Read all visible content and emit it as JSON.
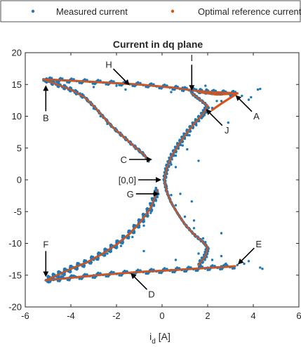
{
  "colors": {
    "measured": "#1f77b4",
    "reference": "#d95319",
    "axis": "#262626",
    "arrow": "#000000"
  },
  "chart_data": {
    "type": "scatter",
    "title": "Current in dq plane",
    "xlabel_main": "i",
    "xlabel_sub": "d",
    "xlabel_unit": " [A]",
    "ylabel": "",
    "xlim": [
      -6,
      6
    ],
    "ylim": [
      -20,
      20
    ],
    "xticks": [
      -6,
      -4,
      -2,
      0,
      2,
      4,
      6
    ],
    "yticks": [
      -20,
      -15,
      -10,
      -5,
      0,
      5,
      10,
      15,
      20
    ],
    "grid": false,
    "legend_position": "top",
    "series": [
      {
        "name": "Measured current",
        "style": "dots",
        "color_key": "measured",
        "points": [
          [
            -5.2,
            15.6
          ],
          [
            -4.8,
            15.2
          ],
          [
            -4.5,
            14.8
          ],
          [
            -4.2,
            14.6
          ],
          [
            -4.0,
            14.4
          ],
          [
            -3.8,
            14.1
          ],
          [
            -3.6,
            13.6
          ],
          [
            -3.4,
            13.0
          ],
          [
            -3.2,
            12.2
          ],
          [
            -3.0,
            11.2
          ],
          [
            -2.7,
            10.0
          ],
          [
            -2.4,
            8.8
          ],
          [
            -2.0,
            7.6
          ],
          [
            -1.6,
            6.4
          ],
          [
            -1.2,
            5.2
          ],
          [
            -0.9,
            4.2
          ],
          [
            -0.6,
            3.2
          ],
          [
            -3.0,
            14.6
          ],
          [
            -2.0,
            14.8
          ],
          [
            -1.2,
            15.0
          ],
          [
            -0.5,
            15.1
          ],
          [
            0.2,
            14.8
          ],
          [
            0.9,
            14.5
          ],
          [
            1.5,
            14.2
          ],
          [
            2.2,
            14.0
          ],
          [
            2.8,
            13.8
          ],
          [
            3.2,
            13.6
          ],
          [
            3.5,
            13.2
          ],
          [
            3.8,
            12.6
          ],
          [
            4.2,
            14.2
          ],
          [
            4.3,
            14.3
          ],
          [
            3.9,
            13.0
          ],
          [
            3.0,
            13.2
          ],
          [
            2.6,
            12.4
          ],
          [
            2.2,
            11.3
          ],
          [
            1.8,
            10.0
          ],
          [
            1.5,
            8.6
          ],
          [
            1.2,
            7.0
          ],
          [
            0.9,
            5.4
          ],
          [
            0.6,
            3.8
          ],
          [
            0.4,
            2.4
          ],
          [
            0.2,
            1.0
          ],
          [
            0.1,
            0.0
          ],
          [
            0.2,
            -1.0
          ],
          [
            0.4,
            -2.4
          ],
          [
            0.6,
            -4.0
          ],
          [
            1.0,
            -5.8
          ],
          [
            1.4,
            -7.6
          ],
          [
            1.8,
            -9.2
          ],
          [
            2.0,
            -10.6
          ],
          [
            1.6,
            -11.6
          ],
          [
            2.2,
            -12.6
          ],
          [
            2.8,
            -13.2
          ],
          [
            3.3,
            -13.4
          ],
          [
            3.6,
            -13.2
          ],
          [
            4.3,
            -13.8
          ],
          [
            4.4,
            -14.0
          ],
          [
            3.8,
            -12.8
          ],
          [
            2.6,
            -13.6
          ],
          [
            2.0,
            -13.8
          ],
          [
            1.2,
            -14.0
          ],
          [
            0.4,
            -14.2
          ],
          [
            -0.4,
            -14.4
          ],
          [
            -1.2,
            -14.6
          ],
          [
            -2.0,
            -14.8
          ],
          [
            -3.0,
            -15.0
          ],
          [
            -3.8,
            -15.2
          ],
          [
            -4.4,
            -15.4
          ],
          [
            -5.0,
            -15.6
          ],
          [
            -4.2,
            -14.2
          ],
          [
            -3.6,
            -13.4
          ],
          [
            -3.0,
            -12.6
          ],
          [
            -2.4,
            -11.6
          ],
          [
            -1.8,
            -10.4
          ],
          [
            -1.3,
            -9.0
          ],
          [
            -0.8,
            -7.2
          ],
          [
            -0.5,
            -5.2
          ],
          [
            -0.3,
            -3.2
          ],
          [
            -0.2,
            -1.8
          ],
          [
            0.6,
            2.0
          ],
          [
            0.8,
            -2.2
          ],
          [
            1.1,
            4.8
          ],
          [
            1.4,
            -6.4
          ],
          [
            1.6,
            3.0
          ],
          [
            1.3,
            -3.4
          ],
          [
            2.4,
            12.4
          ],
          [
            2.9,
            9.0
          ],
          [
            2.6,
            -8.4
          ],
          [
            1.9,
            -9.8
          ],
          [
            -1.6,
            14.2
          ],
          [
            0.4,
            13.8
          ],
          [
            -0.8,
            -11.2
          ],
          [
            0.6,
            -12.6
          ],
          [
            1.9,
            14.8
          ],
          [
            2.6,
            -12.0
          ]
        ]
      },
      {
        "name": "Optimal reference current",
        "style": "line",
        "color_key": "reference",
        "points": [
          [
            -5.2,
            15.8
          ],
          [
            3.3,
            13.6
          ],
          [
            2.8,
            12.0
          ],
          [
            1.8,
            8.5
          ],
          [
            1.0,
            5.0
          ],
          [
            0.3,
            2.0
          ],
          [
            0.1,
            0.0
          ],
          [
            0.2,
            -2.0
          ],
          [
            0.5,
            -4.5
          ],
          [
            1.0,
            -7.0
          ],
          [
            1.6,
            -9.0
          ],
          [
            2.0,
            -10.6
          ],
          [
            1.9,
            -12.5
          ],
          [
            3.2,
            -13.6
          ],
          [
            -5.1,
            -15.8
          ],
          [
            -4.0,
            -14.0
          ],
          [
            -3.0,
            -12.5
          ],
          [
            -2.0,
            -10.8
          ],
          [
            -1.0,
            -8.0
          ],
          [
            -0.4,
            -4.5
          ],
          [
            -0.2,
            -2.0
          ]
        ],
        "top_branch": [
          [
            -5.2,
            15.8
          ],
          [
            -4.0,
            15.6
          ],
          [
            -2.5,
            15.3
          ],
          [
            -1.0,
            15.0
          ],
          [
            0.5,
            14.5
          ],
          [
            1.5,
            14.0
          ],
          [
            2.2,
            13.8
          ],
          [
            3.3,
            13.6
          ]
        ],
        "top_return": [
          [
            -5.2,
            15.8
          ],
          [
            -4.6,
            15.0
          ],
          [
            -4.0,
            14.2
          ],
          [
            -3.4,
            13.0
          ],
          [
            -3.0,
            11.6
          ],
          [
            -2.6,
            10.0
          ],
          [
            -2.2,
            8.4
          ],
          [
            -1.7,
            6.8
          ],
          [
            -1.2,
            5.2
          ],
          [
            -0.8,
            4.0
          ],
          [
            -0.6,
            3.0
          ]
        ],
        "right_arc": [
          [
            1.3,
            13.6
          ],
          [
            1.6,
            12.8
          ],
          [
            2.0,
            11.6
          ],
          [
            1.8,
            10.4
          ],
          [
            1.4,
            8.8
          ],
          [
            1.0,
            7.0
          ],
          [
            0.7,
            5.4
          ],
          [
            0.4,
            3.6
          ],
          [
            0.2,
            1.8
          ],
          [
            0.1,
            0.0
          ],
          [
            0.2,
            -1.8
          ],
          [
            0.4,
            -3.6
          ],
          [
            0.7,
            -5.4
          ],
          [
            1.0,
            -7.0
          ],
          [
            1.4,
            -8.6
          ],
          [
            1.8,
            -9.8
          ],
          [
            2.0,
            -10.6
          ],
          [
            1.9,
            -12.0
          ],
          [
            1.6,
            -13.4
          ]
        ],
        "right_arc_top": [
          [
            1.6,
            13.8
          ],
          [
            2.4,
            13.4
          ],
          [
            3.3,
            13.6
          ],
          [
            2.6,
            12.0
          ],
          [
            2.2,
            11.0
          ]
        ],
        "bottom_branch": [
          [
            -5.1,
            -15.8
          ],
          [
            -4.0,
            -15.4
          ],
          [
            -2.5,
            -14.9
          ],
          [
            -1.0,
            -14.5
          ],
          [
            0.5,
            -14.2
          ],
          [
            1.8,
            -13.9
          ],
          [
            3.2,
            -13.6
          ]
        ],
        "bottom_return": [
          [
            -5.1,
            -15.8
          ],
          [
            -4.6,
            -15.0
          ],
          [
            -4.0,
            -14.0
          ],
          [
            -3.3,
            -13.0
          ],
          [
            -2.6,
            -11.6
          ],
          [
            -2.0,
            -10.2
          ],
          [
            -1.4,
            -8.4
          ],
          [
            -0.9,
            -6.4
          ],
          [
            -0.5,
            -4.4
          ],
          [
            -0.3,
            -2.6
          ],
          [
            -0.2,
            -1.6
          ]
        ]
      }
    ],
    "annotations": [
      {
        "text": "A",
        "tip": [
          3.2,
          13.4
        ],
        "arrow_dir": "up-left"
      },
      {
        "text": "B",
        "tip": [
          -5.1,
          15.0
        ],
        "arrow_dir": "up"
      },
      {
        "text": "C",
        "tip": [
          -0.4,
          3.2
        ],
        "arrow_dir": "right"
      },
      {
        "text": "[0,0]",
        "tip": [
          0.0,
          0.0
        ],
        "arrow_dir": "right"
      },
      {
        "text": "G",
        "tip": [
          -0.1,
          -2.2
        ],
        "arrow_dir": "right"
      },
      {
        "text": "D",
        "tip": [
          -1.4,
          -14.6
        ],
        "arrow_dir": "up-left"
      },
      {
        "text": "E",
        "tip": [
          3.3,
          -13.4
        ],
        "arrow_dir": "down-left"
      },
      {
        "text": "F",
        "tip": [
          -5.1,
          -15.4
        ],
        "arrow_dir": "down"
      },
      {
        "text": "H",
        "tip": [
          -1.4,
          14.8
        ],
        "arrow_dir": "down-right"
      },
      {
        "text": "I",
        "tip": [
          1.3,
          13.9
        ],
        "arrow_dir": "down"
      },
      {
        "text": "J",
        "tip": [
          1.9,
          11.2
        ],
        "arrow_dir": "up-left"
      }
    ]
  }
}
